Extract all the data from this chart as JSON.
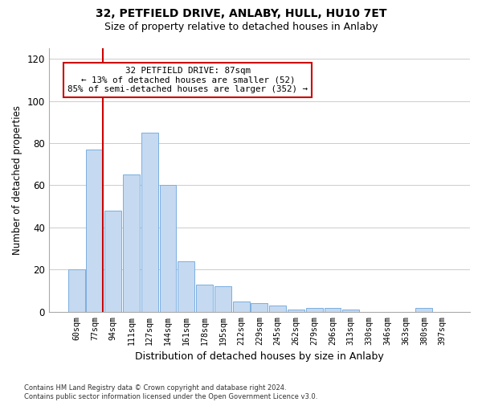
{
  "title1": "32, PETFIELD DRIVE, ANLABY, HULL, HU10 7ET",
  "title2": "Size of property relative to detached houses in Anlaby",
  "xlabel": "Distribution of detached houses by size in Anlaby",
  "ylabel": "Number of detached properties",
  "bin_labels": [
    "60sqm",
    "77sqm",
    "94sqm",
    "111sqm",
    "127sqm",
    "144sqm",
    "161sqm",
    "178sqm",
    "195sqm",
    "212sqm",
    "229sqm",
    "245sqm",
    "262sqm",
    "279sqm",
    "296sqm",
    "313sqm",
    "330sqm",
    "346sqm",
    "363sqm",
    "380sqm",
    "397sqm"
  ],
  "bar_heights": [
    20,
    77,
    48,
    65,
    85,
    60,
    24,
    13,
    12,
    5,
    4,
    3,
    1,
    2,
    2,
    1,
    0,
    0,
    0,
    2,
    0
  ],
  "bar_color": "#c5d9f0",
  "bar_edge_color": "#7aafe0",
  "grid_color": "#cccccc",
  "vline_color": "#cc0000",
  "annotation_text": "32 PETFIELD DRIVE: 87sqm\n← 13% of detached houses are smaller (52)\n85% of semi-detached houses are larger (352) →",
  "annotation_box_color": "#ffffff",
  "annotation_box_edge": "#cc0000",
  "ylim": [
    0,
    125
  ],
  "yticks": [
    0,
    20,
    40,
    60,
    80,
    100,
    120
  ],
  "footnote": "Contains HM Land Registry data © Crown copyright and database right 2024.\nContains public sector information licensed under the Open Government Licence v3.0.",
  "background_color": "#ffffff"
}
